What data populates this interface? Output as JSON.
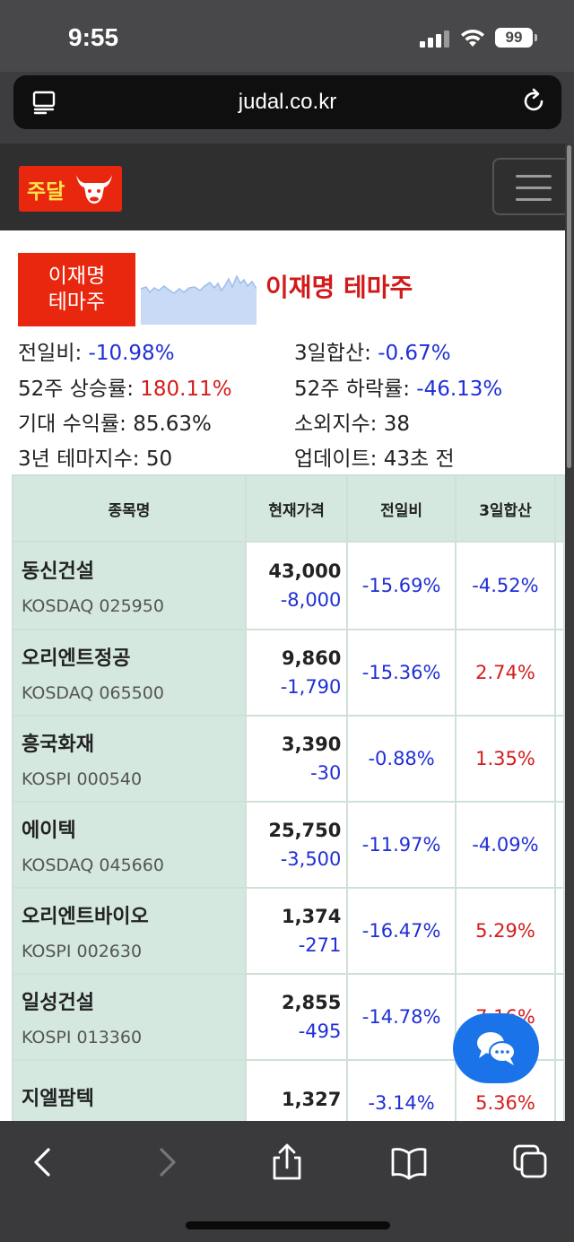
{
  "status_bar": {
    "time": "9:55",
    "battery": "99"
  },
  "browser": {
    "url": "judal.co.kr"
  },
  "site": {
    "logo_text": "주달"
  },
  "theme": {
    "badge_line1": "이재명",
    "badge_line2": "테마주",
    "title": "이재명 테마주",
    "stats": [
      {
        "label": "전일비:",
        "value": "-10.98%"
      },
      {
        "label": "3일합산:",
        "value": "-0.67%"
      },
      {
        "label": "52주 상승률:",
        "value": "180.11%"
      },
      {
        "label": "52주 하락률:",
        "value": "-46.13%"
      },
      {
        "label": "기대 수익률:",
        "value": "85.63%"
      },
      {
        "label": "소외지수:",
        "value": "38"
      },
      {
        "label": "3년 테마지수:",
        "value": "50"
      },
      {
        "label": "업데이트:",
        "value": "43초 전"
      }
    ]
  },
  "table": {
    "headers": [
      "종목명",
      "현재가격",
      "전일비",
      "3일합산"
    ],
    "rows": [
      {
        "name": "동신건설",
        "market": "KOSDAQ 025950",
        "price": "43,000",
        "diff": "-8,000",
        "change": "-15.69%",
        "change3": "-4.52%"
      },
      {
        "name": "오리엔트정공",
        "market": "KOSDAQ 065500",
        "price": "9,860",
        "diff": "-1,790",
        "change": "-15.36%",
        "change3": "2.74%"
      },
      {
        "name": "흥국화재",
        "market": "KOSPI 000540",
        "price": "3,390",
        "diff": "-30",
        "change": "-0.88%",
        "change3": "1.35%"
      },
      {
        "name": "에이텍",
        "market": "KOSDAQ 045660",
        "price": "25,750",
        "diff": "-3,500",
        "change": "-11.97%",
        "change3": "-4.09%"
      },
      {
        "name": "오리엔트바이오",
        "market": "KOSPI 002630",
        "price": "1,374",
        "diff": "-271",
        "change": "-16.47%",
        "change3": "5.29%"
      },
      {
        "name": "일성건설",
        "market": "KOSPI 013360",
        "price": "2,855",
        "diff": "-495",
        "change": "-14.78%",
        "change3": "7.16%"
      },
      {
        "name": "지엘팜텍",
        "market": "",
        "price": "1,327",
        "diff": "",
        "change": "-3.14%",
        "change3": "5.36%"
      }
    ]
  },
  "colors": {
    "negative": "#1f2fd6",
    "positive": "#d41c1c",
    "accent": "#e8270e",
    "table_header": "#d4e8df"
  },
  "icons": [
    "reader-icon",
    "reload-icon",
    "bull-logo-icon",
    "hamburger-menu-icon",
    "chat-icon",
    "back-icon",
    "forward-icon",
    "share-icon",
    "bookmarks-icon",
    "tabs-icon"
  ]
}
